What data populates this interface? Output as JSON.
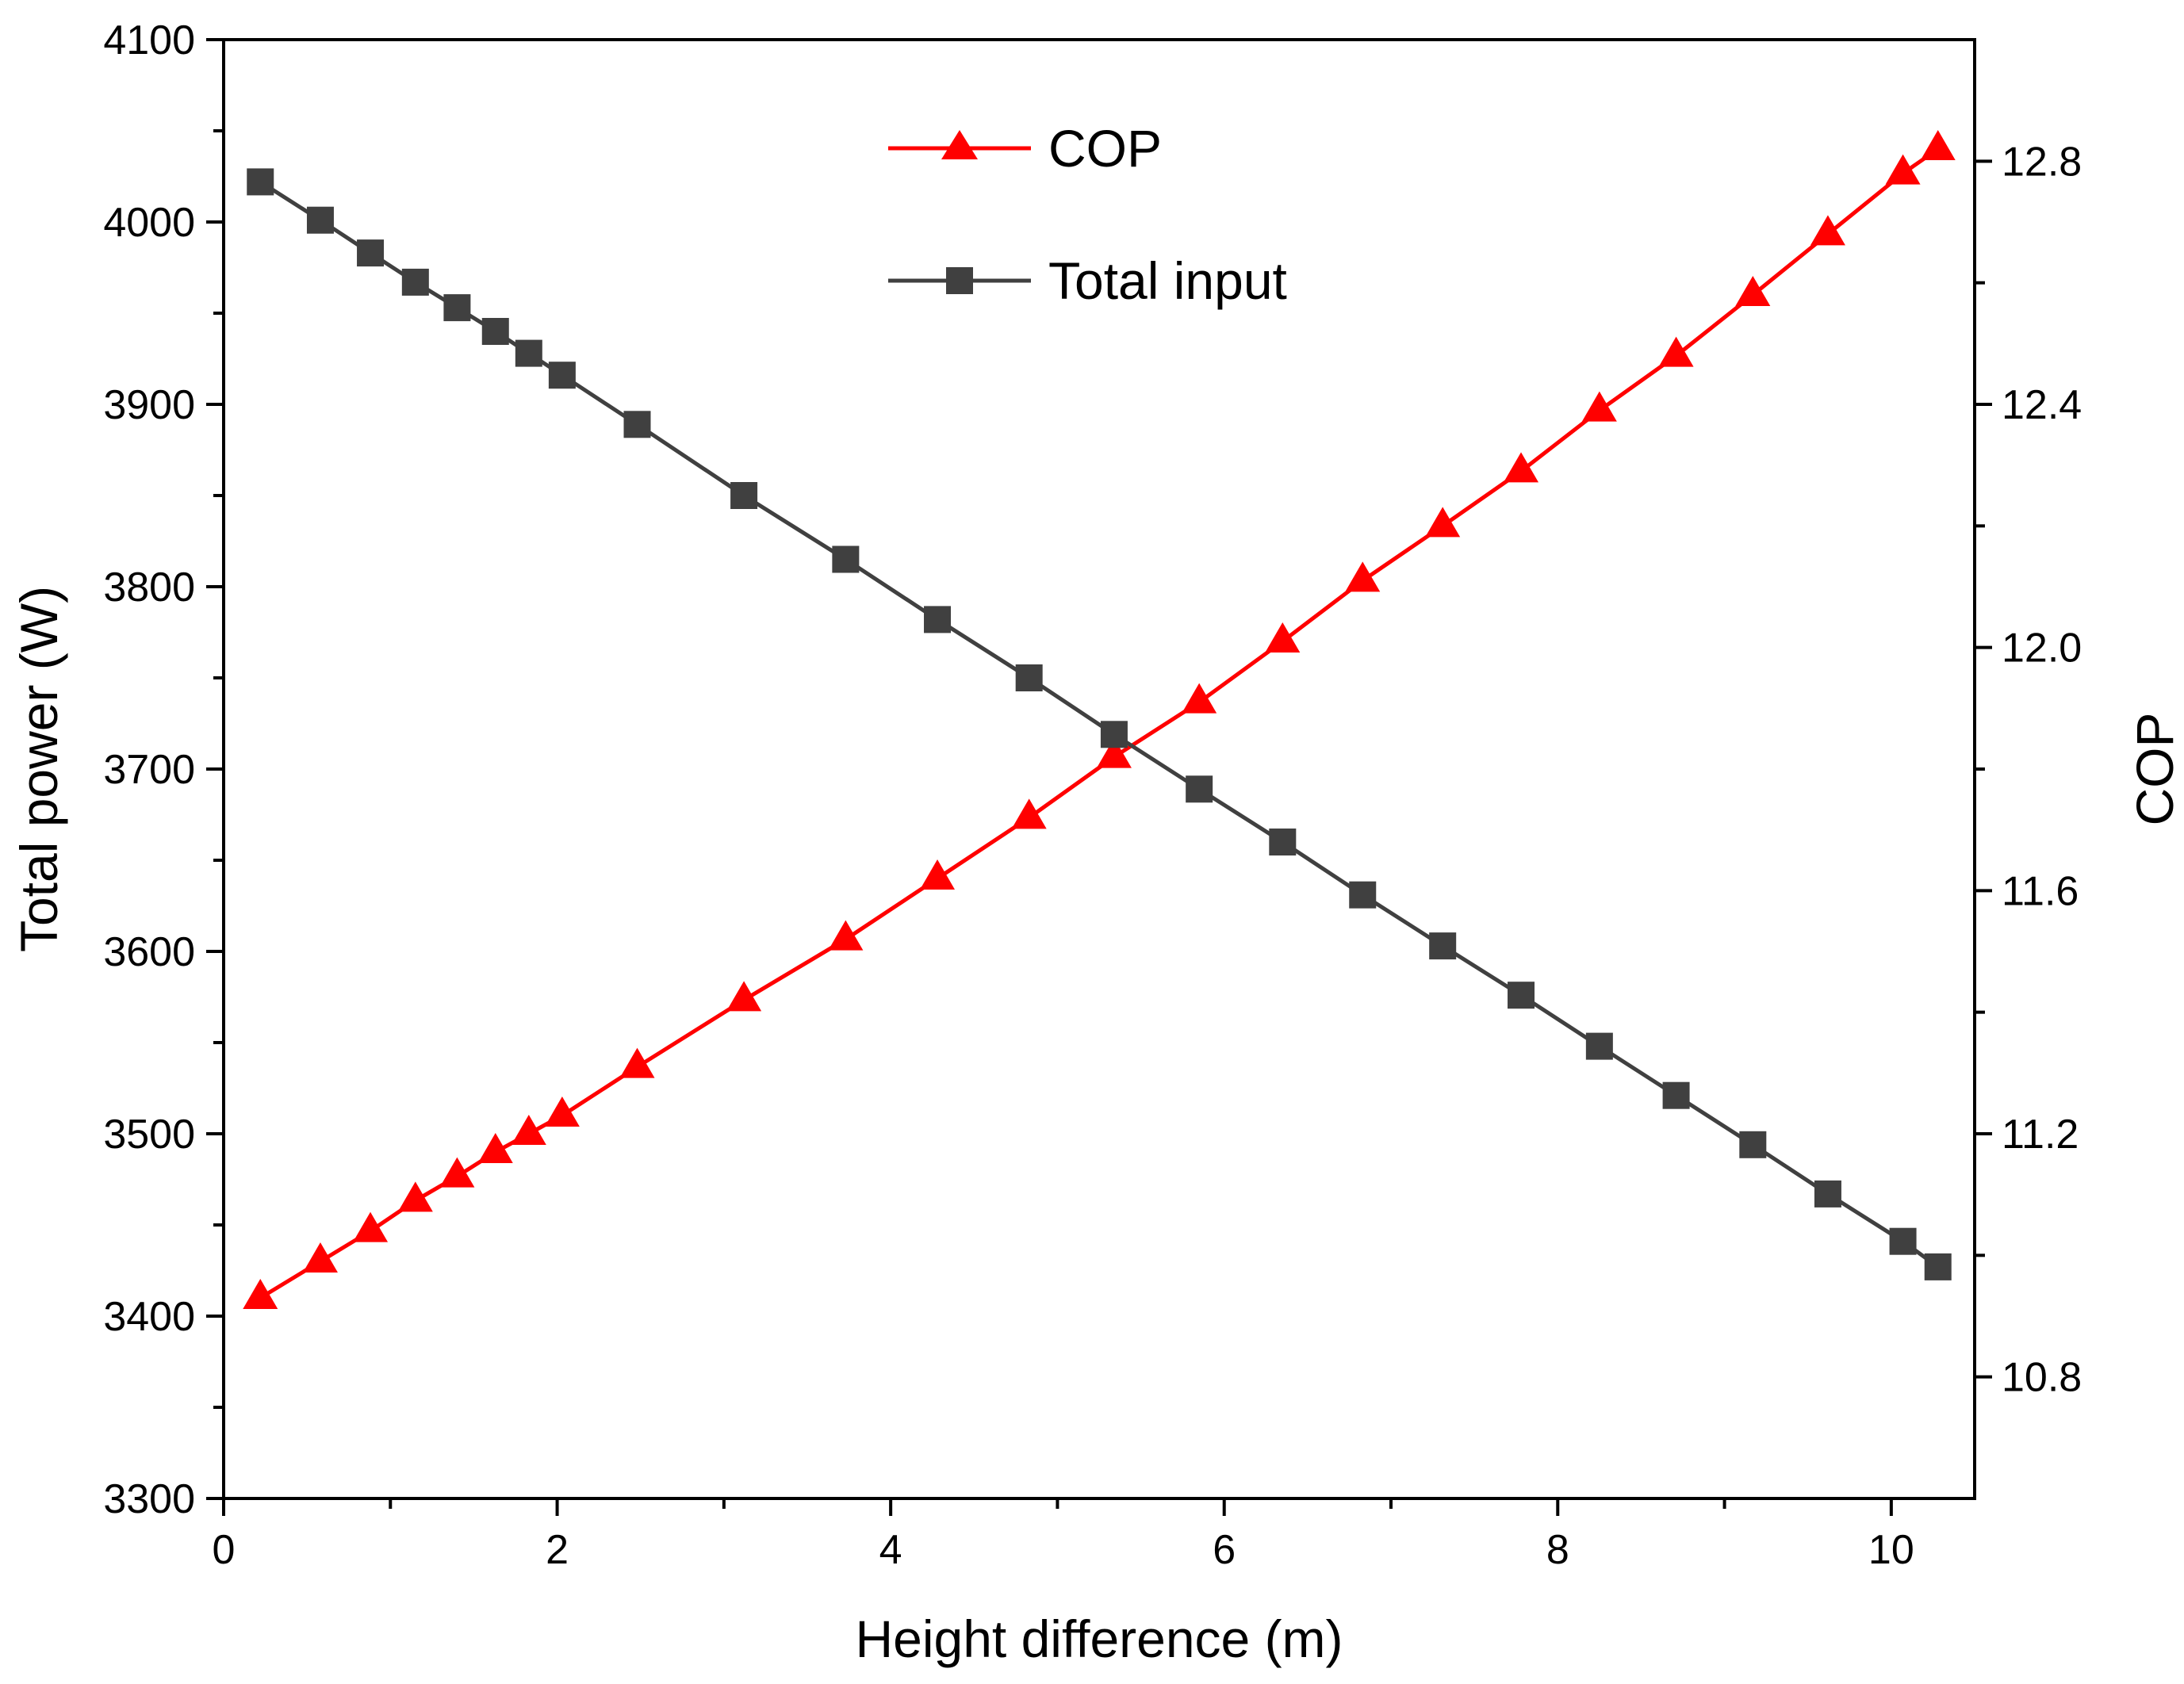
{
  "chart_data": {
    "type": "line",
    "title": "",
    "xlabel": "Height difference (m)",
    "ylabel_left": "Total power (W)",
    "ylabel_right": "COP",
    "xlim": [
      0,
      10.5
    ],
    "ylim_left": [
      3300,
      4100
    ],
    "ylim_right": [
      10.6,
      13.0
    ],
    "x_ticks": [
      0,
      2,
      4,
      6,
      8,
      10
    ],
    "y_left_ticks": [
      3300,
      3400,
      3500,
      3600,
      3700,
      3800,
      3900,
      4000,
      4100
    ],
    "y_right_ticks": [
      10.8,
      11.2,
      11.6,
      12.0,
      12.4,
      12.8
    ],
    "x_tick_labels": [
      "0",
      "2",
      "4",
      "6",
      "8",
      "10"
    ],
    "y_left_tick_labels": [
      "3300",
      "3400",
      "3500",
      "3600",
      "3700",
      "3800",
      "3900",
      "4000",
      "4100"
    ],
    "y_right_tick_labels": [
      "10.8",
      "11.2",
      "11.6",
      "12.0",
      "12.4",
      "12.8"
    ],
    "grid": false,
    "legend_position": "top-center",
    "series": [
      {
        "name": "COP",
        "axis": "right",
        "color": "#ff0000",
        "marker": "triangle",
        "x": [
          0.22,
          0.58,
          0.88,
          1.15,
          1.4,
          1.63,
          1.83,
          2.03,
          2.48,
          3.12,
          3.73,
          4.28,
          4.83,
          5.34,
          5.85,
          6.35,
          6.83,
          7.31,
          7.78,
          8.25,
          8.71,
          9.17,
          9.62,
          10.07,
          10.28
        ],
        "values": [
          10.93,
          10.99,
          11.04,
          11.09,
          11.13,
          11.17,
          11.2,
          11.23,
          11.31,
          11.42,
          11.52,
          11.62,
          11.72,
          11.82,
          11.91,
          12.01,
          12.11,
          12.2,
          12.29,
          12.39,
          12.48,
          12.58,
          12.68,
          12.78,
          12.82
        ]
      },
      {
        "name": "Total input",
        "axis": "left",
        "color": "#404040",
        "marker": "square",
        "x": [
          0.22,
          0.58,
          0.88,
          1.15,
          1.4,
          1.63,
          1.83,
          2.03,
          2.48,
          3.12,
          3.73,
          4.28,
          4.83,
          5.34,
          5.85,
          6.35,
          6.83,
          7.31,
          7.78,
          8.25,
          8.71,
          9.17,
          9.62,
          10.07,
          10.28
        ],
        "values": [
          4022,
          4001,
          3983,
          3967,
          3953,
          3940,
          3928,
          3916,
          3889,
          3850,
          3815,
          3782,
          3750,
          3719,
          3689,
          3660,
          3631,
          3603,
          3576,
          3548,
          3521,
          3494,
          3467,
          3441,
          3427
        ]
      }
    ],
    "colors": {
      "axis": "#000000"
    }
  }
}
